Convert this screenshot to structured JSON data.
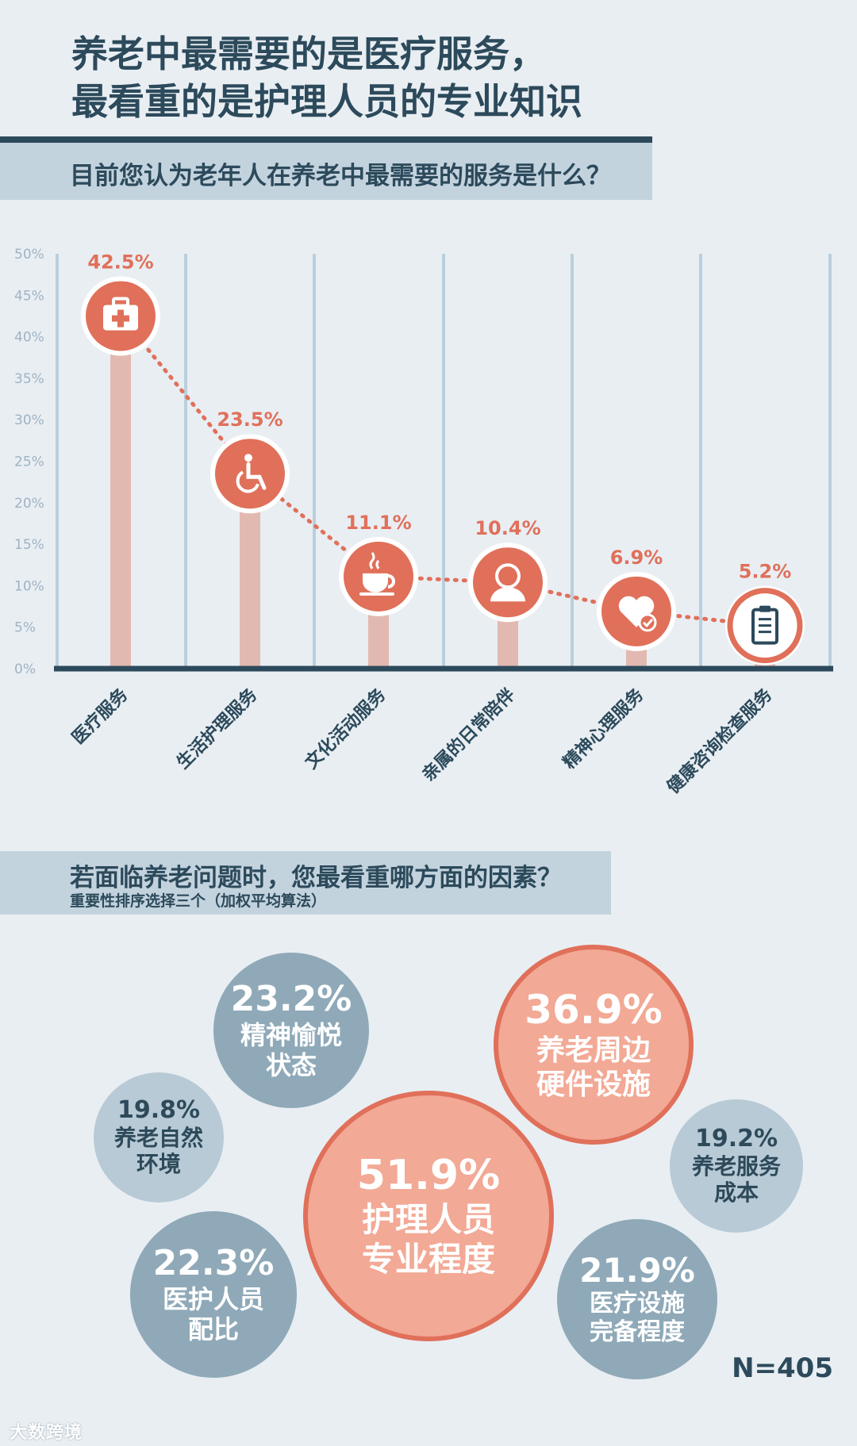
{
  "header": {
    "title_line1": "养老中最需要的是医疗服务，",
    "title_line2": "最看重的是护理人员的专业知识"
  },
  "section1": {
    "question": "目前您认为老年人在养老中最需要的服务是什么？"
  },
  "section2": {
    "question": "若面临养老问题时，您最看重哪方面的因素？",
    "subtitle": "重要性排序选择三个（加权平均算法）"
  },
  "chart_data": [
    {
      "type": "bar",
      "title": "",
      "xlabel": "",
      "ylabel": "",
      "categories": [
        "医疗服务",
        "生活护理服务",
        "文化活动服务",
        "亲属的日常陪伴",
        "精神心理服务",
        "健康咨询检查服务"
      ],
      "values": [
        42.5,
        23.5,
        11.1,
        10.4,
        6.9,
        5.2
      ],
      "value_labels": [
        "42.5%",
        "23.5%",
        "11.1%",
        "10.4%",
        "6.9%",
        "5.2%"
      ],
      "icons": [
        "medical-kit-icon",
        "wheelchair-icon",
        "coffee-cup-icon",
        "person-icon",
        "heart-check-icon",
        "clipboard-icon"
      ],
      "ylim": [
        0,
        50
      ],
      "yticks": [
        "0%",
        "5%",
        "10%",
        "15%",
        "20%",
        "25%",
        "30%",
        "35%",
        "40%",
        "45%",
        "50%"
      ],
      "grid": true,
      "colors": {
        "bar": "#e2b9b1",
        "marker": "#e0705a",
        "axis": "#2c4a5b",
        "grid": "#b9cfdd"
      }
    },
    {
      "type": "bubble",
      "items": [
        {
          "value": 23.2,
          "label": "23.2%",
          "text": [
            "精神愉悦",
            "状态"
          ]
        },
        {
          "value": 36.9,
          "label": "36.9%",
          "text": [
            "养老周边",
            "硬件设施"
          ]
        },
        {
          "value": 19.8,
          "label": "19.8%",
          "text": [
            "养老自然",
            "环境"
          ]
        },
        {
          "value": 19.2,
          "label": "19.2%",
          "text": [
            "养老服务",
            "成本"
          ]
        },
        {
          "value": 51.9,
          "label": "51.9%",
          "text": [
            "护理人员",
            "专业程度"
          ]
        },
        {
          "value": 22.3,
          "label": "22.3%",
          "text": [
            "医护人员",
            "配比"
          ]
        },
        {
          "value": 21.9,
          "label": "21.9%",
          "text": [
            "医疗设施",
            "完备程度"
          ]
        }
      ],
      "sample_size": "N=405"
    }
  ],
  "footer": {
    "brand": "大数跨境"
  }
}
